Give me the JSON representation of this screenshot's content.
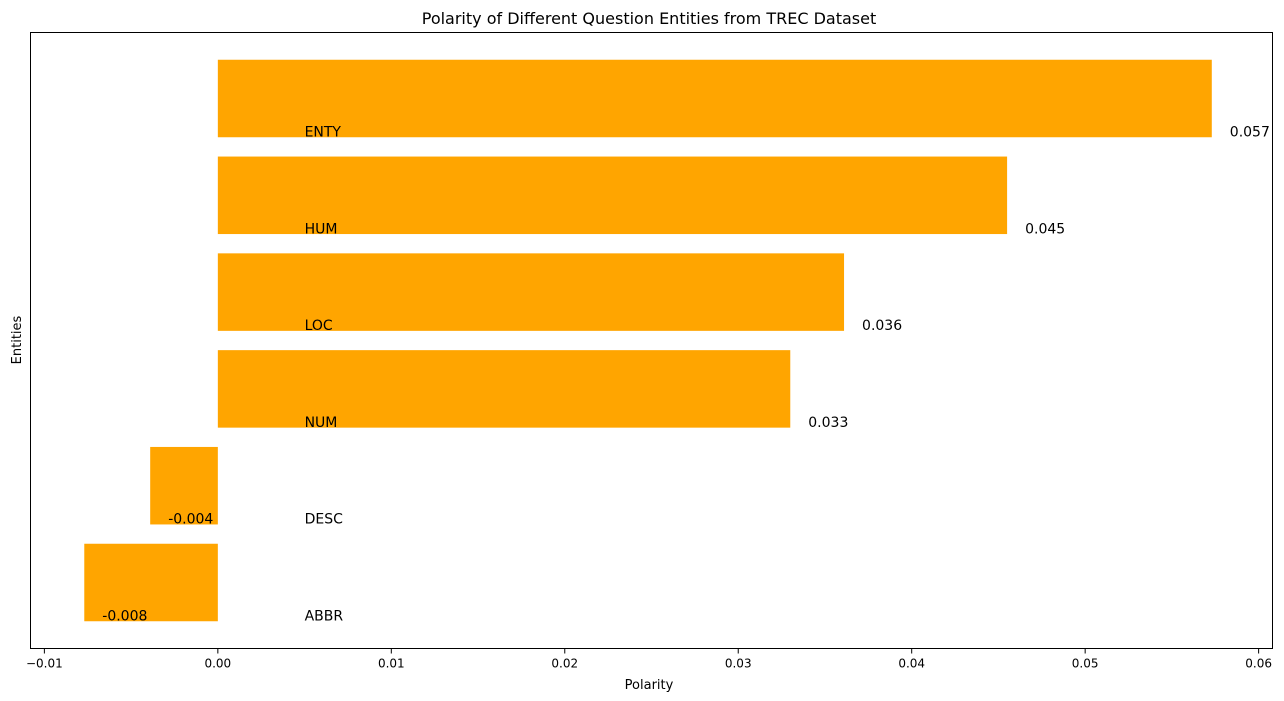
{
  "chart_data": {
    "type": "bar",
    "orientation": "horizontal",
    "title": "Polarity of Different Question Entities from TREC Dataset",
    "xlabel": "Polarity",
    "ylabel": "Entities",
    "xlim": [
      -0.0108,
      0.0608
    ],
    "x_ticks": [
      -0.01,
      0.0,
      0.01,
      0.02,
      0.03,
      0.04,
      0.05,
      0.06
    ],
    "x_tick_labels": [
      "−0.01",
      "0.00",
      "0.01",
      "0.02",
      "0.03",
      "0.04",
      "0.05",
      "0.06"
    ],
    "grid": false,
    "bar_color": "#FFA500",
    "categories": [
      "ENTY",
      "HUM",
      "LOC",
      "NUM",
      "DESC",
      "ABBR"
    ],
    "values": [
      0.0573,
      0.0455,
      0.0361,
      0.033,
      -0.0039,
      -0.0077
    ],
    "value_labels": [
      "0.057",
      "0.045",
      "0.036",
      "0.033",
      "-0.004",
      "-0.008"
    ]
  }
}
